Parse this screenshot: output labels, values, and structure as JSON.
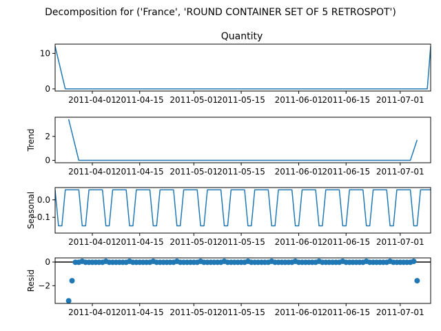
{
  "suptitle": "Decomposition for ('France', 'ROUND CONTAINER SET OF 5 RETROSPOT')",
  "colors": {
    "series": "#1f77b4",
    "zero_line": "#000000",
    "axes": "#000000"
  },
  "x_tick_labels": [
    "2011-04-01",
    "2011-04-15",
    "2011-05-01",
    "2011-05-15",
    "2011-06-01",
    "2011-06-15",
    "2011-07-01"
  ],
  "chart_data": [
    {
      "type": "line",
      "title": "Quantity",
      "ylabel": "",
      "x_range": [
        "2011-03-21",
        "2011-07-10"
      ],
      "ylim": [
        -0.6,
        12.6
      ],
      "yticks": [
        0,
        10
      ],
      "yticklabels": [
        "0",
        "10"
      ],
      "x": [
        "2011-03-21",
        "2011-03-24",
        "2011-07-09",
        "2011-07-10"
      ],
      "values": [
        12,
        0,
        0,
        12
      ]
    },
    {
      "type": "line",
      "title": "",
      "ylabel": "Trend",
      "x_range": [
        "2011-03-21",
        "2011-07-10"
      ],
      "ylim": [
        -0.2,
        3.6
      ],
      "yticks": [
        0,
        2
      ],
      "yticklabels": [
        "0",
        "2"
      ],
      "x": [
        "2011-03-25",
        "2011-03-28",
        "2011-07-04",
        "2011-07-06"
      ],
      "values": [
        3.43,
        0,
        0,
        1.71
      ]
    },
    {
      "type": "line",
      "title": "",
      "ylabel": "Seasonal",
      "x_range": [
        "2011-03-21",
        "2011-07-10"
      ],
      "ylim": [
        -0.19,
        0.07
      ],
      "yticks": [
        0.0,
        -0.1
      ],
      "yticklabels": [
        "0.0",
        "−0.1"
      ],
      "period": 7,
      "pattern": [
        0.0571,
        -0.1486,
        -0.1486,
        0.0571,
        0.0571,
        0.0571,
        0.0571
      ]
    },
    {
      "type": "scatter",
      "title": "",
      "ylabel": "Resid",
      "x_range": [
        "2011-03-21",
        "2011-07-10"
      ],
      "ylim": [
        -3.5,
        0.35
      ],
      "yticks": [
        0,
        -2
      ],
      "yticklabels": [
        "0",
        "−2"
      ],
      "zero_line": 0,
      "outliers": [
        {
          "x": "2011-03-25",
          "y": -3.28
        },
        {
          "x": "2011-03-26",
          "y": -1.58
        },
        {
          "x": "2011-07-06",
          "y": -1.58
        }
      ],
      "baseline_y": -0.02,
      "baseline_range": [
        "2011-03-27",
        "2011-07-05"
      ],
      "peak_y": 0.06,
      "period": 7
    }
  ]
}
